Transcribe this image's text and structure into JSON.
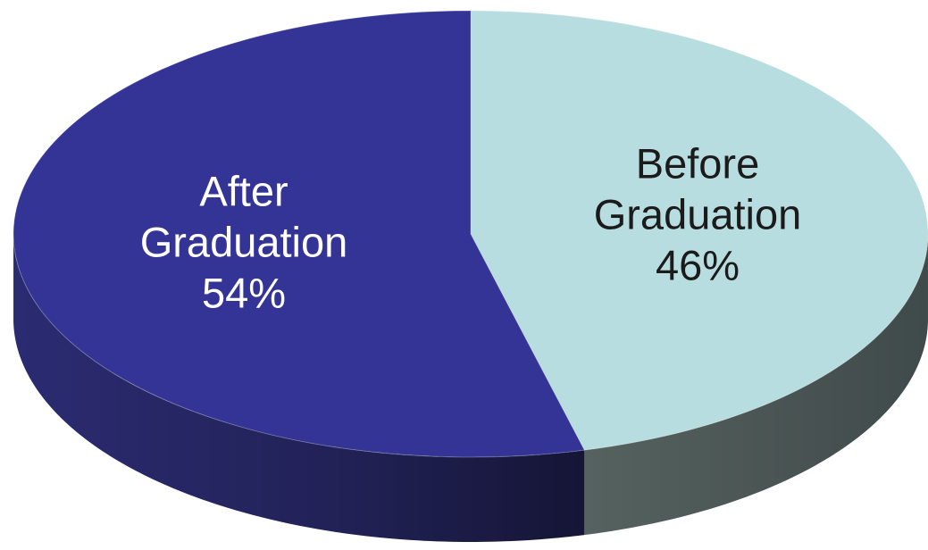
{
  "chart_data": {
    "type": "pie",
    "style": "3d",
    "categories": [
      "Before Graduation",
      "After Graduation"
    ],
    "values": [
      46,
      54
    ],
    "unit": "%",
    "slices": [
      {
        "name": "Before Graduation",
        "label_lines": [
          "Before",
          "Graduation",
          "46%"
        ],
        "value": 46,
        "color": "#b8dde0",
        "side_color": "#4e5b5b",
        "label_color": "#1b1b1b"
      },
      {
        "name": "After Graduation",
        "label_lines": [
          "After",
          "Graduation",
          "54%"
        ],
        "value": 54,
        "color": "#343496",
        "side_color": "#23235e",
        "label_color": "#ffffff"
      }
    ],
    "title": "",
    "legend": false
  }
}
